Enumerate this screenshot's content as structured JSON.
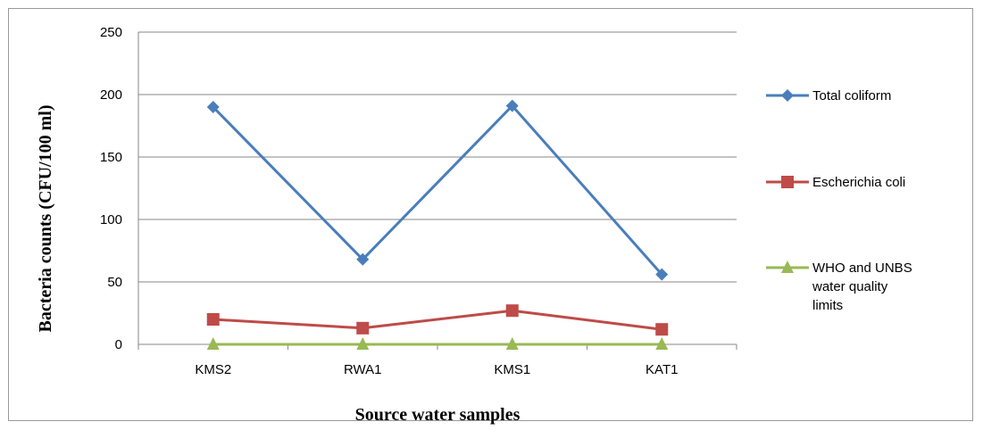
{
  "chart_data": {
    "type": "line",
    "categories": [
      "KMS2",
      "RWA1",
      "KMS1",
      "KAT1"
    ],
    "xlabel": "Source water samples",
    "ylabel": "Bacteria counts (CFU/100 ml)",
    "ylim": [
      0,
      250
    ],
    "yticks": [
      0,
      50,
      100,
      150,
      200,
      250
    ],
    "grid": "horizontal",
    "legend_position": "right",
    "series": [
      {
        "name": "Total coliform",
        "values": [
          190,
          68,
          191,
          56
        ],
        "color": "#4a7ebb",
        "marker": "diamond"
      },
      {
        "name": "Escherichia coli",
        "values": [
          20,
          13,
          27,
          12
        ],
        "color": "#be4b48",
        "marker": "square"
      },
      {
        "name": "WHO and UNBS water quality limits",
        "name_lines": [
          "WHO and UNBS",
          "water quality",
          "limits"
        ],
        "values": [
          0,
          0,
          0,
          0
        ],
        "color": "#98b954",
        "marker": "triangle"
      }
    ]
  }
}
